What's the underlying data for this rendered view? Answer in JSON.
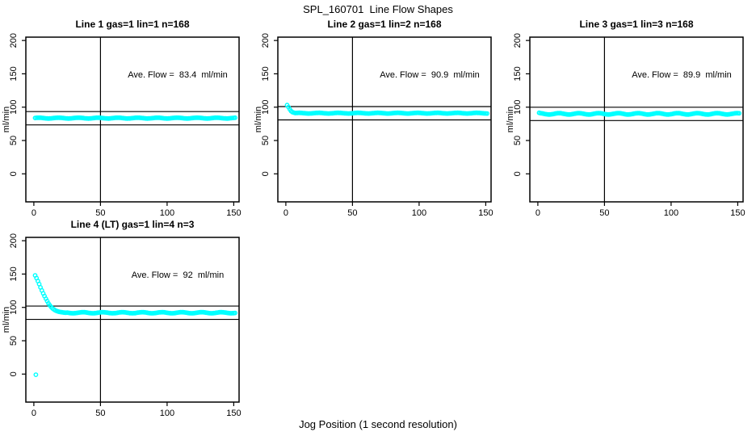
{
  "page_title": "SPL_160701  Line Flow Shapes",
  "x_axis_label": "Jog Position (1 second resolution)",
  "accent_color": "#00ffff",
  "line_color": "#000000",
  "chart_data": [
    {
      "type": "scatter",
      "title": "Line 1 gas=1 lin=1 n=168",
      "annotation": "Ave. Flow =  83.4  ml/min",
      "ave_flow_ml_min": 83.4,
      "n_points": 168,
      "ylabel": "ml/min",
      "xlim": [
        -6,
        154
      ],
      "ylim": [
        -42,
        205
      ],
      "xticks": [
        0,
        50,
        100,
        150
      ],
      "yticks": [
        0,
        50,
        100,
        150,
        200
      ],
      "crosshair_x": 50,
      "ref_lines": [
        93.4,
        73.4
      ],
      "grid": false,
      "series": {
        "baseline": 83.6,
        "noise_amp": 0.6,
        "x_from": 1,
        "x_to": 151,
        "transient": [],
        "outliers": []
      }
    },
    {
      "type": "scatter",
      "title": "Line 2 gas=1 lin=2 n=168",
      "annotation": "Ave. Flow =  90.9  ml/min",
      "ave_flow_ml_min": 90.9,
      "n_points": 168,
      "ylabel": "ml/min",
      "xlim": [
        -6,
        154
      ],
      "ylim": [
        -42,
        205
      ],
      "xticks": [
        0,
        50,
        100,
        150
      ],
      "yticks": [
        0,
        50,
        100,
        150,
        200
      ],
      "crosshair_x": 50,
      "ref_lines": [
        100.9,
        80.9
      ],
      "grid": false,
      "series": {
        "baseline": 91.0,
        "noise_amp": 0.5,
        "x_from": 1,
        "x_to": 151,
        "transient": [
          [
            1,
            103.0
          ],
          [
            2,
            100.0
          ],
          [
            3,
            96.5
          ],
          [
            4,
            94.0
          ],
          [
            5,
            92.5
          ],
          [
            6,
            91.8
          ]
        ],
        "outliers": []
      }
    },
    {
      "type": "scatter",
      "title": "Line 3 gas=1 lin=3 n=168",
      "annotation": "Ave. Flow =  89.9  ml/min",
      "ave_flow_ml_min": 89.9,
      "n_points": 168,
      "ylabel": "ml/min",
      "xlim": [
        -6,
        154
      ],
      "ylim": [
        -42,
        205
      ],
      "xticks": [
        0,
        50,
        100,
        150
      ],
      "yticks": [
        0,
        50,
        100,
        150,
        200
      ],
      "crosshair_x": 50,
      "ref_lines": [
        99.9,
        79.9
      ],
      "grid": false,
      "series": {
        "baseline": 90.0,
        "noise_amp": 1.0,
        "x_from": 1,
        "x_to": 151,
        "transient": [
          [
            1,
            91.5
          ],
          [
            2,
            91.0
          ]
        ],
        "outliers": []
      }
    },
    {
      "type": "scatter",
      "title": "Line 4 (LT) gas=1 lin=4 n=3",
      "annotation": "Ave. Flow =  92  ml/min",
      "ave_flow_ml_min": 92,
      "n_points": 3,
      "ylabel": "ml/min",
      "xlim": [
        -6,
        154
      ],
      "ylim": [
        -42,
        205
      ],
      "xticks": [
        0,
        50,
        100,
        150
      ],
      "yticks": [
        0,
        50,
        100,
        150,
        200
      ],
      "crosshair_x": 50,
      "ref_lines": [
        102,
        82
      ],
      "grid": false,
      "series": {
        "baseline": 92.0,
        "noise_amp": 0.8,
        "x_from": 1,
        "x_to": 151,
        "transient": [
          [
            1,
            148.0
          ],
          [
            2,
            144.0
          ],
          [
            3,
            139.5
          ],
          [
            4,
            135.0
          ],
          [
            5,
            130.0
          ],
          [
            6,
            125.5
          ],
          [
            7,
            121.0
          ],
          [
            8,
            117.0
          ],
          [
            9,
            113.0
          ],
          [
            10,
            109.5
          ],
          [
            11,
            106.0
          ],
          [
            12,
            103.0
          ],
          [
            13,
            100.5
          ],
          [
            14,
            98.5
          ],
          [
            15,
            97.0
          ],
          [
            16,
            95.7
          ],
          [
            17,
            94.7
          ],
          [
            18,
            94.0
          ],
          [
            19,
            93.4
          ],
          [
            20,
            93.0
          ],
          [
            21,
            92.7
          ],
          [
            22,
            92.4
          ],
          [
            23,
            92.2
          ],
          [
            24,
            92.0
          ]
        ],
        "outliers": [
          [
            1.5,
            -1
          ]
        ]
      }
    }
  ]
}
